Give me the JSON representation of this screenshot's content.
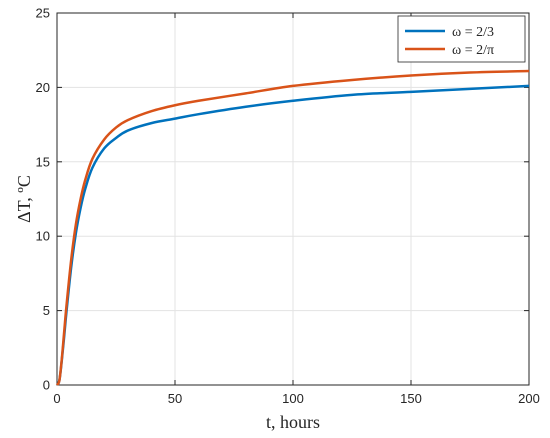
{
  "chart_data": {
    "type": "line",
    "title": "",
    "xlabel": "t, hours",
    "ylabel": "ΔT, ºC",
    "xlim": [
      0,
      200
    ],
    "ylim": [
      0,
      25
    ],
    "xticks": [
      0,
      50,
      100,
      150,
      200
    ],
    "yticks": [
      0,
      5,
      10,
      15,
      20,
      25
    ],
    "xtick_labels": [
      "0",
      "50",
      "100",
      "150",
      "200"
    ],
    "ytick_labels": [
      "0",
      "5",
      "10",
      "15",
      "20",
      "25"
    ],
    "grid": true,
    "legend_position": "top-right",
    "x": [
      0,
      1,
      2,
      3,
      4,
      6,
      8,
      10,
      12,
      15,
      20,
      25,
      30,
      40,
      50,
      60,
      80,
      100,
      125,
      150,
      175,
      200
    ],
    "series": [
      {
        "name": "ω = 2/3",
        "color": "#0072BD",
        "values": [
          0.0,
          0.3,
          1.6,
          3.2,
          4.9,
          7.9,
          10.2,
          11.9,
          13.2,
          14.6,
          15.9,
          16.6,
          17.1,
          17.6,
          17.9,
          18.2,
          18.7,
          19.1,
          19.5,
          19.7,
          19.9,
          20.1
        ]
      },
      {
        "name": "ω = 2/π",
        "color": "#D95319",
        "values": [
          0.0,
          0.3,
          1.7,
          3.5,
          5.3,
          8.4,
          10.8,
          12.5,
          13.8,
          15.2,
          16.5,
          17.3,
          17.8,
          18.4,
          18.8,
          19.1,
          19.6,
          20.1,
          20.5,
          20.8,
          21.0,
          21.1
        ]
      }
    ]
  }
}
